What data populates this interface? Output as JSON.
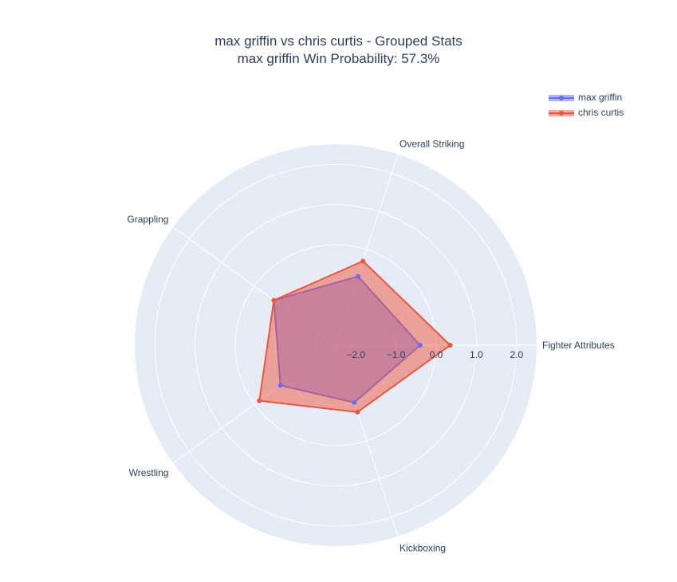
{
  "chart_data": {
    "type": "radar",
    "title": "max griffin vs chris curtis - Grouped Stats",
    "subtitle": "max griffin Win Probability: 57.3%",
    "categories": [
      "Fighter Attributes",
      "Overall Striking",
      "Grappling",
      "Wrestling",
      "Kickboxing"
    ],
    "series": [
      {
        "name": "max griffin",
        "color": "#636efa",
        "values": [
          -0.4,
          -0.7,
          -0.6,
          -0.8,
          -1.0
        ]
      },
      {
        "name": "chris curtis",
        "color": "#ef553b",
        "values": [
          0.35,
          -0.3,
          -0.6,
          -0.15,
          -0.75
        ]
      }
    ],
    "radial_axis": {
      "range": [
        -2.5,
        2.5
      ],
      "tick_values": [
        -2,
        -1,
        0,
        1,
        2
      ],
      "tick_labels": [
        "−2.0",
        "−1.0",
        "0.0",
        "1.0",
        "2.0"
      ]
    },
    "angular_axis_start": "Fighter Attributes at 0 degrees, counterclockwise",
    "grid": true,
    "legend_position": "top-right",
    "background": "#e5ecf6"
  }
}
